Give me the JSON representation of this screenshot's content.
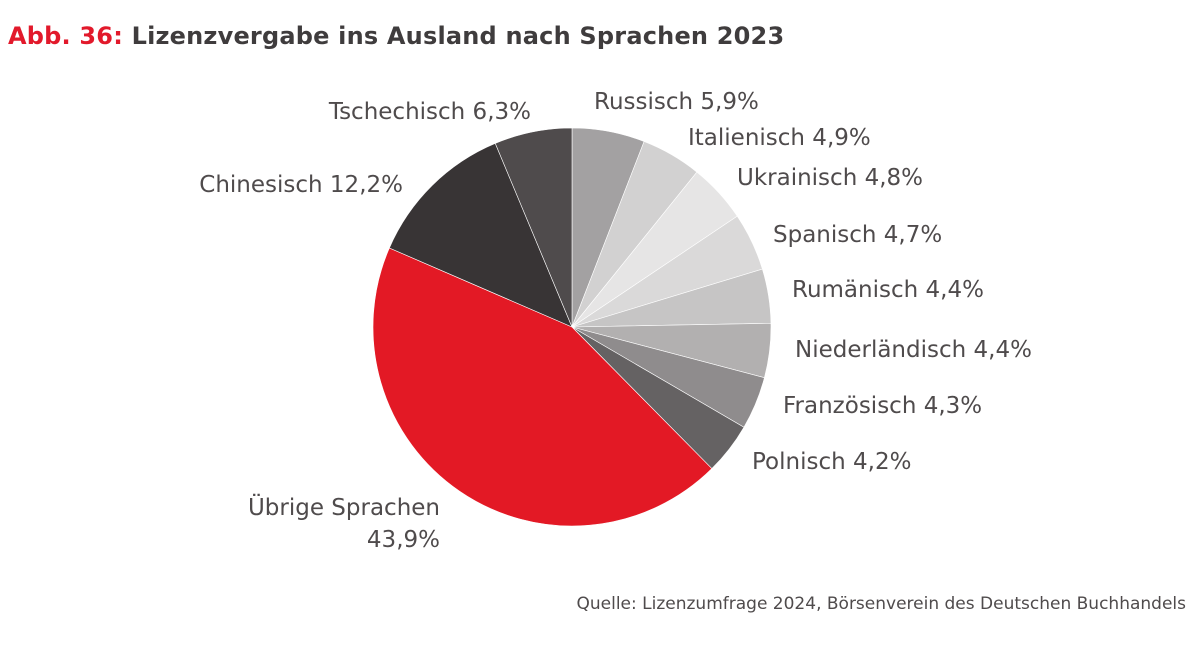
{
  "figure": {
    "prefix": "Abb. 36:",
    "title": "Lizenzvergabe ins Ausland nach Sprachen 2023",
    "source": "Quelle: Lizenzumfrage 2024, Börsenverein des Deutschen Buchhandels"
  },
  "chart_data": {
    "type": "pie",
    "title": "Lizenzvergabe ins Ausland nach Sprachen 2023",
    "slices": [
      {
        "name": "Russisch",
        "value": 5.9,
        "label": "Russisch 5,9%",
        "color": "#a3a1a2"
      },
      {
        "name": "Italienisch",
        "value": 4.9,
        "label": "Italienisch 4,9%",
        "color": "#d2d1d1"
      },
      {
        "name": "Ukrainisch",
        "value": 4.8,
        "label": "Ukrainisch 4,8%",
        "color": "#e6e5e5"
      },
      {
        "name": "Spanisch",
        "value": 4.7,
        "label": "Spanisch 4,7%",
        "color": "#dad9d9"
      },
      {
        "name": "Rumänisch",
        "value": 4.4,
        "label": "Rumänisch 4,4%",
        "color": "#c6c5c5"
      },
      {
        "name": "Niederländisch",
        "value": 4.4,
        "label": "Niederländisch 4,4%",
        "color": "#b2b0b0"
      },
      {
        "name": "Französisch",
        "value": 4.3,
        "label": "Französisch 4,3%",
        "color": "#8f8c8d"
      },
      {
        "name": "Polnisch",
        "value": 4.2,
        "label": "Polnisch 4,2%",
        "color": "#656263"
      },
      {
        "name": "Übrige Sprachen",
        "value": 43.9,
        "label": "Übrige Sprachen",
        "label2": "43,9%",
        "color": "#e31925"
      },
      {
        "name": "Chinesisch",
        "value": 12.2,
        "label": "Chinesisch 12,2%",
        "color": "#383435"
      },
      {
        "name": "Tschechisch",
        "value": 6.3,
        "label": "Tschechisch 6,3%",
        "color": "#4f4b4c"
      }
    ]
  }
}
